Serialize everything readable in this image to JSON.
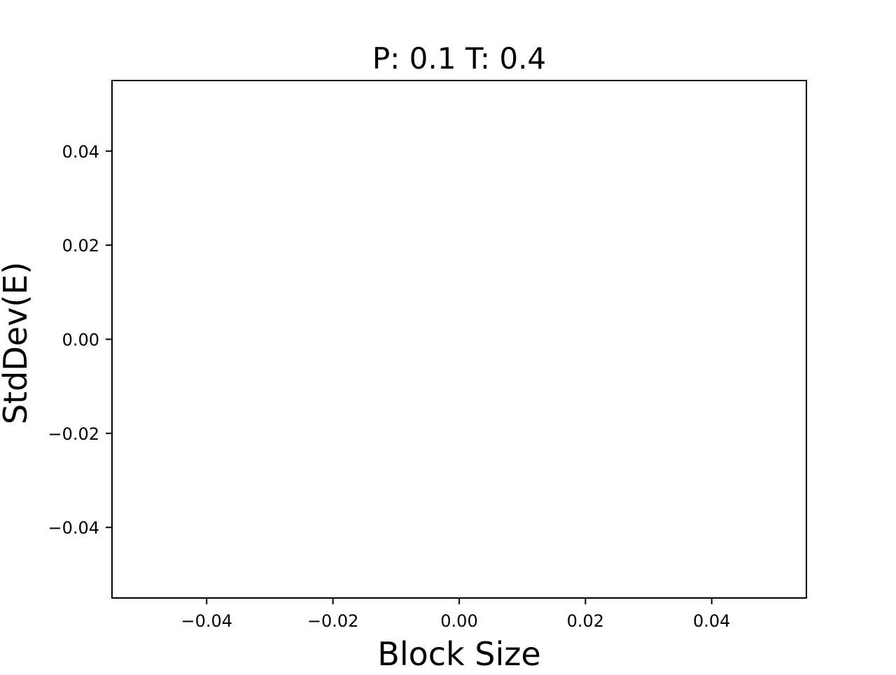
{
  "chart_data": {
    "type": "line",
    "title": "P: 0.1 T: 0.4",
    "xlabel": "Block Size",
    "ylabel": "StdDev(E)",
    "xlim": [
      -0.055,
      0.055
    ],
    "ylim": [
      -0.055,
      0.055
    ],
    "x_ticks": [
      -0.04,
      -0.02,
      0.0,
      0.02,
      0.04
    ],
    "x_tick_labels": [
      "−0.04",
      "−0.02",
      "0.00",
      "0.02",
      "0.04"
    ],
    "y_ticks": [
      -0.04,
      -0.02,
      0.0,
      0.02,
      0.04
    ],
    "y_tick_labels": [
      "−0.04",
      "−0.02",
      "0.00",
      "0.02",
      "0.04"
    ],
    "series": [],
    "grid": false,
    "legend": "none"
  }
}
